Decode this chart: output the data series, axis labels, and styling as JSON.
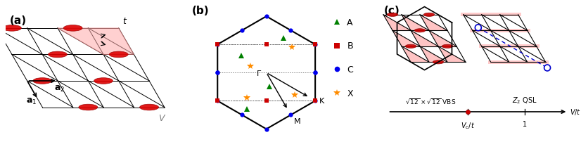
{
  "fig_width": 8.26,
  "fig_height": 2.03,
  "dpi": 100,
  "bg_color": "#ffffff",
  "panel_b": {
    "A_color": "#008000",
    "B_color": "#cc0000",
    "C_color": "#0000ee",
    "X_color": "#ff8c00",
    "legend_labels": [
      "A",
      "B",
      "C",
      "X"
    ],
    "legend_colors": [
      "#008000",
      "#cc0000",
      "#0000ee",
      "#ff8c00"
    ],
    "legend_markers": [
      "^",
      "s",
      "o",
      "*"
    ]
  }
}
